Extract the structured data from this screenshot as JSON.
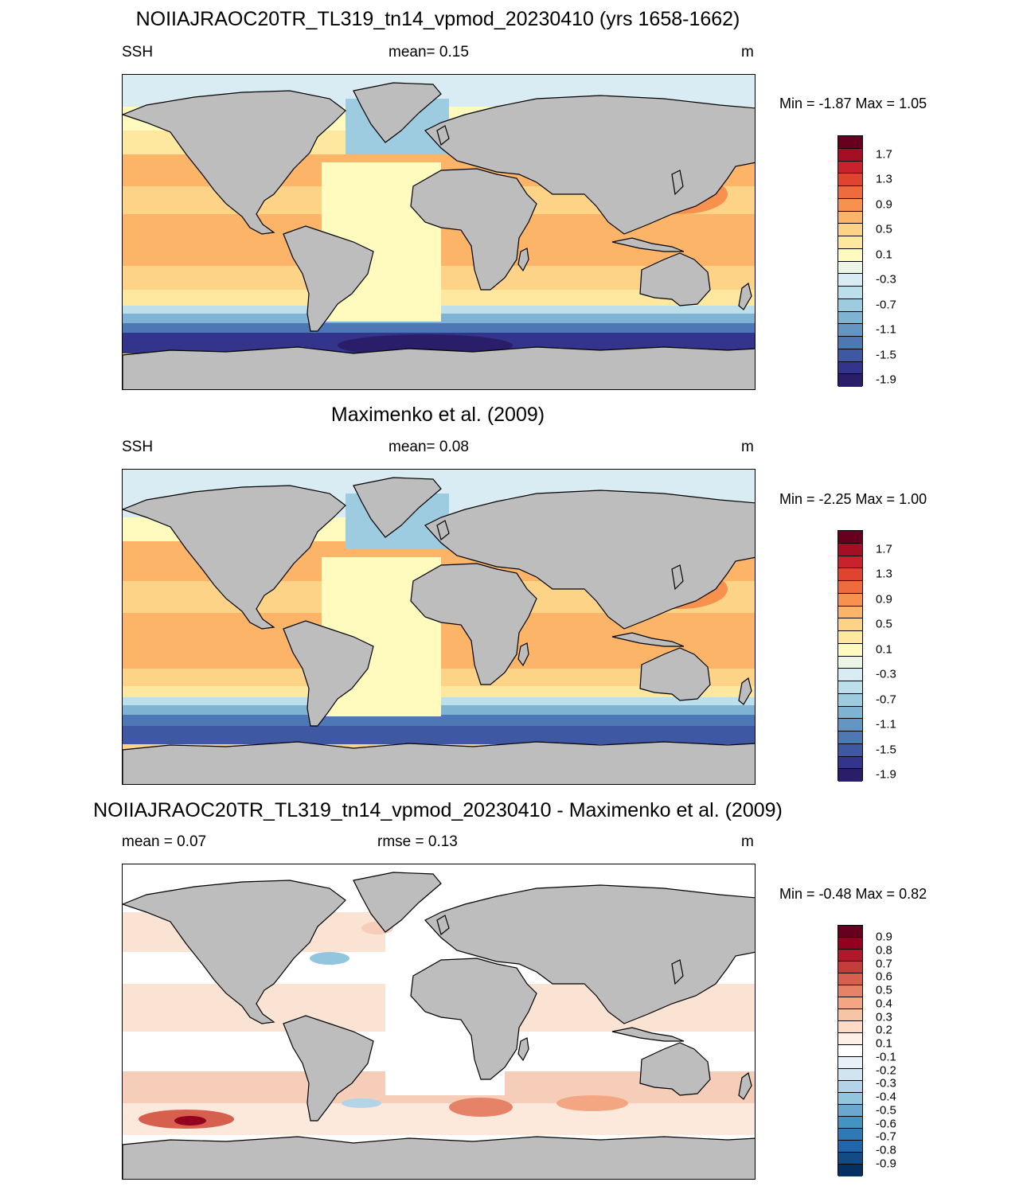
{
  "panels": [
    {
      "title": "NOIIAJRAOC20TR_TL319_tn14_vpmod_20230410 (yrs 1658-1662)",
      "left": "SSH",
      "center": "mean=   0.15",
      "right": "m",
      "minmax": "Min =  -1.87 Max =    1.05",
      "field": "model",
      "colorbar": {
        "labels": [
          "1.7",
          "1.3",
          "0.9",
          "0.5",
          "0.1",
          "-0.3",
          "-0.7",
          "-1.1",
          "-1.5",
          "-1.9"
        ],
        "colors": [
          "#67001f",
          "#a50f25",
          "#c8232c",
          "#e0442f",
          "#ef6a3e",
          "#f8914d",
          "#fcb469",
          "#fdd487",
          "#fee8a0",
          "#fffbbe",
          "#ecf6e6",
          "#d9ecf3",
          "#bcdfeb",
          "#9dcbe0",
          "#7eb3d3",
          "#6496c4",
          "#4d78b5",
          "#3e58a3",
          "#33348b",
          "#2a1e6a"
        ]
      }
    },
    {
      "title": "Maximenko et al. (2009)",
      "left": "SSH",
      "center": "mean=   0.08",
      "right": "m",
      "minmax": "Min =  -2.25 Max =    1.00",
      "field": "obs",
      "colorbar": {
        "labels": [
          "1.7",
          "1.3",
          "0.9",
          "0.5",
          "0.1",
          "-0.3",
          "-0.7",
          "-1.1",
          "-1.5",
          "-1.9"
        ],
        "colors": [
          "#67001f",
          "#a50f25",
          "#c8232c",
          "#e0442f",
          "#ef6a3e",
          "#f8914d",
          "#fcb469",
          "#fdd487",
          "#fee8a0",
          "#fffbbe",
          "#ecf6e6",
          "#d9ecf3",
          "#bcdfeb",
          "#9dcbe0",
          "#7eb3d3",
          "#6496c4",
          "#4d78b5",
          "#3e58a3",
          "#33348b",
          "#2a1e6a"
        ]
      }
    },
    {
      "title": "NOIIAJRAOC20TR_TL319_tn14_vpmod_20230410 - Maximenko et al. (2009)",
      "left": "mean =   0.07",
      "center": "rmse =   0.13",
      "right": "m",
      "minmax": "Min =  -0.48 Max =    0.82",
      "field": "diff",
      "colorbar": {
        "labels": [
          "0.9",
          "0.8",
          "0.7",
          "0.6",
          "0.5",
          "0.4",
          "0.3",
          "0.2",
          "0.1",
          "-0.1",
          "-0.2",
          "-0.3",
          "-0.4",
          "-0.5",
          "-0.6",
          "-0.7",
          "-0.8",
          "-0.9"
        ],
        "colors": [
          "#67001f",
          "#94001f",
          "#b2182b",
          "#c43c3c",
          "#d6604d",
          "#e58267",
          "#f4a582",
          "#f8c4a6",
          "#fddbc7",
          "#fef0e7",
          "#ffffff",
          "#e8f1f7",
          "#d1e5f0",
          "#b3d4e8",
          "#92c5de",
          "#6aa8cf",
          "#4393c3",
          "#2f79b5",
          "#2166ac",
          "#134b87",
          "#053061"
        ]
      }
    }
  ]
}
